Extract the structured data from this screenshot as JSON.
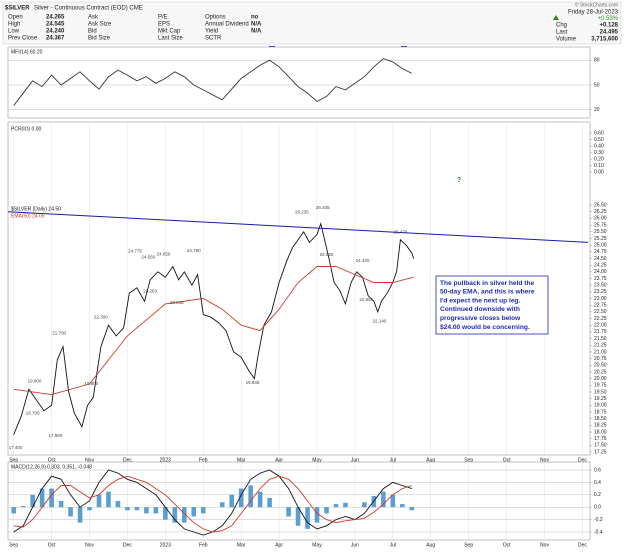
{
  "header": {
    "symbol": "$SILVER",
    "description": "Silver - Continuous Contract (EOD) CME",
    "source": "© StockCharts.com",
    "columns": [
      [
        [
          "Open",
          "24.265"
        ],
        [
          "High",
          "24.545"
        ],
        [
          "Low",
          "24.240"
        ],
        [
          "Prev Close",
          "24.367"
        ]
      ],
      [
        [
          "Ask"
        ],
        [
          "Ask Size"
        ],
        [
          "Bid"
        ],
        [
          "Bid Size"
        ]
      ],
      [
        [
          "P/E"
        ],
        [
          "EPS"
        ],
        [
          "Mkt Cap"
        ],
        [
          "Last Size"
        ]
      ],
      [
        [
          "Options",
          "no"
        ],
        [
          "Annual Dividend",
          "N/A"
        ],
        [
          "Yield",
          "N/A"
        ],
        [
          "SCTR"
        ]
      ]
    ],
    "date": "Friday 28-Jul-2023",
    "change_pct": "+0.53%",
    "stats": [
      [
        "Chg",
        "+0.128"
      ],
      [
        "Last",
        "24.495"
      ],
      [
        "Volume",
        "3,715,600"
      ]
    ]
  },
  "chart_data": [
    {
      "type": "line",
      "title": "MFI(14) 60.20",
      "xlim": [
        -0.15,
        15.2
      ],
      "ylim": [
        10,
        96
      ],
      "yticks": [
        80,
        50,
        20
      ],
      "grid": true,
      "series": [
        {
          "color": "#333333",
          "x": [
            0,
            0.25,
            0.5,
            0.75,
            1,
            1.25,
            1.5,
            1.75,
            2,
            2.25,
            2.5,
            2.75,
            3,
            3.25,
            3.5,
            3.75,
            4,
            4.25,
            4.5,
            4.75,
            5,
            5.25,
            5.5,
            5.75,
            6,
            6.25,
            6.5,
            6.75,
            7,
            7.25,
            7.5,
            7.75,
            8,
            8.25,
            8.5,
            8.75,
            9,
            9.25,
            9.5,
            9.75,
            10,
            10.25,
            10.5
          ],
          "values": [
            25,
            40,
            55,
            48,
            62,
            50,
            58,
            66,
            55,
            45,
            60,
            68,
            62,
            55,
            60,
            52,
            58,
            66,
            60,
            50,
            44,
            38,
            32,
            45,
            58,
            66,
            74,
            80,
            72,
            60,
            48,
            40,
            30,
            36,
            48,
            44,
            52,
            60,
            72,
            82,
            78,
            70,
            64
          ]
        }
      ]
    },
    {
      "type": "line",
      "xlim": [
        -0.15,
        15.2
      ],
      "ylim": [
        17.14,
        29.61
      ],
      "grid": false,
      "xgrid": true,
      "yticks": [
        {
          "value": 26.5,
          "label": "26.50"
        },
        26.25,
        {
          "value": 26,
          "label": "26.00"
        },
        25.75,
        {
          "value": 25.5,
          "label": "25.50"
        },
        25.25,
        {
          "value": 25,
          "label": "25.00"
        },
        24.75,
        {
          "value": 24.5,
          "label": "24.50"
        },
        24.25,
        {
          "value": 24,
          "label": "24.00"
        },
        23.75,
        {
          "value": 23.5,
          "label": "23.50"
        },
        23.25,
        {
          "value": 23,
          "label": "23.00"
        },
        22.75,
        {
          "value": 22.5,
          "label": "22.50"
        },
        22.25,
        {
          "value": 22,
          "label": "22.00"
        },
        21.75,
        {
          "value": 21.5,
          "label": "21.50"
        },
        21.25,
        {
          "value": 21,
          "label": "21.00"
        },
        20.75,
        {
          "value": 20.5,
          "label": "20.50"
        },
        20.25,
        {
          "value": 20,
          "label": "20.00"
        },
        19.75,
        {
          "value": 19.5,
          "label": "19.50"
        },
        19.25,
        {
          "value": 19,
          "label": "19.00"
        },
        18.75,
        {
          "value": 18.5,
          "label": "18.50"
        },
        18.25,
        {
          "value": 18,
          "label": "18.00"
        },
        17.75,
        {
          "value": 17.5,
          "label": "17.50"
        },
        17.25
      ],
      "y2_title": "PCR(IO) 0.00",
      "y2lim": [
        -4.35,
        0.77
      ],
      "y2ticks": [
        {
          "value": 0.6,
          "label": "0.60"
        },
        {
          "value": 0.5,
          "label": "0.50"
        },
        {
          "value": 0.4,
          "label": "0.40"
        },
        {
          "value": 0.3,
          "label": "0.30"
        },
        {
          "value": 0.2,
          "label": "0.20"
        },
        {
          "value": 0.1,
          "label": "0.10"
        },
        {
          "value": 0,
          "label": "0.00"
        }
      ],
      "xticks": [
        {
          "value": 0,
          "label": "Sep"
        },
        {
          "value": 1,
          "label": "Oct"
        },
        {
          "value": 2,
          "label": "Nov"
        },
        {
          "value": 3,
          "label": "Dec"
        },
        {
          "value": 4,
          "label": "2023"
        },
        {
          "value": 5,
          "label": "Feb"
        },
        {
          "value": 6,
          "label": "Mar"
        },
        {
          "value": 7,
          "label": "Apr"
        },
        {
          "value": 8,
          "label": "May"
        },
        {
          "value": 9,
          "label": "Jun"
        },
        {
          "value": 10,
          "label": "Jul"
        },
        {
          "value": 11,
          "label": "Aug"
        },
        {
          "value": 12,
          "label": "Sep"
        },
        {
          "value": 13,
          "label": "Oct"
        },
        {
          "value": 14,
          "label": "Nov"
        },
        {
          "value": 15,
          "label": "Dec"
        }
      ],
      "series": [
        {
          "name": "$SILVER (Daily) 24.50",
          "color": "#111111",
          "x": [
            0,
            0.2,
            0.4,
            0.6,
            0.8,
            1,
            1.15,
            1.3,
            1.45,
            1.6,
            1.8,
            1.95,
            2.1,
            2.3,
            2.5,
            2.7,
            2.9,
            3.05,
            3.25,
            3.45,
            3.6,
            3.8,
            4,
            4.2,
            4.35,
            4.5,
            4.7,
            4.85,
            5,
            5.2,
            5.4,
            5.6,
            5.8,
            6,
            6.2,
            6.35,
            6.45,
            6.6,
            6.8,
            7,
            7.2,
            7.35,
            7.5,
            7.65,
            7.8,
            8,
            8.1,
            8.2,
            8.3,
            8.45,
            8.6,
            8.75,
            8.9,
            9.05,
            9.2,
            9.35,
            9.5,
            9.6,
            9.7,
            9.85,
            10,
            10.1,
            10.2,
            10.35,
            10.5,
            10.55
          ],
          "values": [
            17.9,
            18.6,
            19.6,
            19.2,
            18.8,
            19,
            20.7,
            21.2,
            19.5,
            18.7,
            18.2,
            19,
            19.3,
            21.2,
            22,
            21.6,
            21.9,
            23.2,
            23.4,
            22.9,
            23.7,
            24,
            23.8,
            24.2,
            23.7,
            24,
            23.5,
            23.9,
            22.4,
            22.3,
            22.1,
            21.8,
            21,
            20.8,
            20.3,
            20,
            20.9,
            22,
            22.5,
            23.6,
            24.4,
            24.9,
            25.2,
            25.5,
            25.1,
            25.4,
            25.8,
            25.2,
            24.6,
            23.6,
            23.3,
            22.8,
            23.6,
            24,
            23.8,
            23.1,
            22.9,
            22.5,
            22.9,
            23.2,
            23.6,
            24,
            25.2,
            25,
            24.7,
            24.5
          ]
        },
        {
          "name": "EMA(50) 24.05",
          "color": "#d03a2a",
          "x": [
            0,
            1,
            2,
            3,
            4,
            5,
            5.5,
            6,
            6.5,
            7,
            7.5,
            8,
            8.5,
            9,
            9.5,
            10,
            10.55
          ],
          "values": [
            19.6,
            19.4,
            19.8,
            21.6,
            22.8,
            23,
            22.6,
            22,
            21.8,
            22.6,
            23.6,
            24.2,
            24.2,
            23.9,
            23.6,
            23.6,
            23.8
          ]
        },
        {
          "color": "#1a1aa8",
          "x": [
            -0.15,
            15.15
          ],
          "values": [
            26.25,
            25.1
          ]
        }
      ],
      "annotations": [
        {
          "x": 0.05,
          "value": 17.4,
          "label": "17.400"
        },
        {
          "x": 0.5,
          "value": 18.7,
          "label": "18.700"
        },
        {
          "x": 0.55,
          "value": 19.9,
          "label": "19.900"
        },
        {
          "x": 1.2,
          "value": 21.7,
          "label": "21.700"
        },
        {
          "x": 1.1,
          "value": 17.86,
          "label": "17.860"
        },
        {
          "x": 2.05,
          "value": 19.8,
          "label": "19.800"
        },
        {
          "x": 2.3,
          "value": 22.3,
          "label": "22.300"
        },
        {
          "x": 3.2,
          "value": 24.775,
          "label": "24.775"
        },
        {
          "x": 3.55,
          "value": 24.55,
          "label": "24.550"
        },
        {
          "x": 3.95,
          "value": 24.65,
          "label": "24.650"
        },
        {
          "x": 4.75,
          "value": 24.78,
          "label": "24.780"
        },
        {
          "x": 3.6,
          "value": 23.263,
          "label": "23.263"
        },
        {
          "x": 4.3,
          "value": 22.848,
          "label": "22.848"
        },
        {
          "x": 6.3,
          "value": 19.845,
          "label": "19.845"
        },
        {
          "x": 7.6,
          "value": 26.235,
          "label": "26.235"
        },
        {
          "x": 8.15,
          "value": 26.405,
          "label": "26.405"
        },
        {
          "x": 8.25,
          "value": 24.63,
          "label": "24.630"
        },
        {
          "x": 9.2,
          "value": 24.42,
          "label": "24.420"
        },
        {
          "x": 9.3,
          "value": 22.955,
          "label": "22.955"
        },
        {
          "x": 9.65,
          "value": 22.14,
          "label": "22.140"
        },
        {
          "x": 10.2,
          "value": 25.47,
          "label": "25.470"
        }
      ],
      "callout": [
        "The pullback in silver held the",
        "50-day EMA, and this is where",
        "I'd expect the next up leg.",
        "Continued downside with",
        "progressive closes below",
        "$24.00 would be concerning."
      ],
      "projection_label": "?"
    },
    {
      "type": "line",
      "title": "MACD(12,26,9) 0.303, 0.351, -0.048",
      "xlim": [
        -0.15,
        15.2
      ],
      "ylim": [
        -0.53,
        0.73
      ],
      "grid": true,
      "xgrid": true,
      "yticks": [
        0.6,
        0.4,
        0.2,
        {
          "value": 0,
          "label": "0.0"
        },
        -0.2,
        -0.4
      ],
      "xticks": [
        {
          "value": 0,
          "label": "Sep"
        },
        {
          "value": 1,
          "label": "Oct"
        },
        {
          "value": 2,
          "label": "Nov"
        },
        {
          "value": 3,
          "label": "Dec"
        },
        {
          "value": 4,
          "label": "2023"
        },
        {
          "value": 5,
          "label": "Feb"
        },
        {
          "value": 6,
          "label": "Mar"
        },
        {
          "value": 7,
          "label": "Apr"
        },
        {
          "value": 8,
          "label": "May"
        },
        {
          "value": 9,
          "label": "Jun"
        },
        {
          "value": 10,
          "label": "Jul"
        },
        {
          "value": 11,
          "label": "Aug"
        },
        {
          "value": 12,
          "label": "Sep"
        },
        {
          "value": 13,
          "label": "Oct"
        },
        {
          "value": 14,
          "label": "Nov"
        },
        {
          "value": 15,
          "label": "Dec"
        }
      ],
      "series": [
        {
          "kind": "bar",
          "color": "#5b9fd0",
          "x": [
            0,
            0.25,
            0.5,
            0.75,
            1,
            1.25,
            1.5,
            1.75,
            2,
            2.25,
            2.5,
            2.75,
            3,
            3.25,
            3.5,
            3.75,
            4,
            4.25,
            4.5,
            4.75,
            5,
            5.25,
            5.5,
            5.75,
            6,
            6.25,
            6.5,
            6.75,
            7,
            7.25,
            7.5,
            7.75,
            8,
            8.25,
            8.5,
            8.75,
            9,
            9.25,
            9.5,
            9.75,
            10,
            10.25,
            10.5
          ],
          "values": [
            -0.1,
            0.02,
            0.2,
            0.3,
            0.3,
            0.1,
            -0.15,
            -0.25,
            -0.05,
            0.2,
            0.25,
            0.1,
            -0.05,
            -0.05,
            -0.1,
            -0.1,
            -0.2,
            -0.25,
            -0.25,
            -0.15,
            -0.1,
            0,
            0.08,
            0.2,
            0.3,
            0.35,
            0.25,
            0.15,
            0,
            -0.15,
            -0.3,
            -0.35,
            -0.25,
            -0.1,
            0.05,
            0.07,
            0,
            0.08,
            0.18,
            0.25,
            0.2,
            0.05,
            -0.05
          ]
        },
        {
          "color": "#111111",
          "x": [
            0,
            0.25,
            0.5,
            0.75,
            1,
            1.25,
            1.5,
            1.75,
            2,
            2.25,
            2.5,
            2.75,
            3,
            3.25,
            3.5,
            3.75,
            4,
            4.25,
            4.5,
            4.75,
            5,
            5.25,
            5.5,
            5.75,
            6,
            6.25,
            6.5,
            6.75,
            7,
            7.25,
            7.5,
            7.75,
            8,
            8.25,
            8.5,
            8.75,
            9,
            9.25,
            9.5,
            9.75,
            10,
            10.25,
            10.5
          ],
          "values": [
            -0.4,
            -0.3,
            0,
            0.3,
            0.5,
            0.45,
            0.2,
            0,
            0.1,
            0.4,
            0.6,
            0.55,
            0.45,
            0.4,
            0.3,
            0.2,
            0,
            -0.2,
            -0.35,
            -0.4,
            -0.45,
            -0.4,
            -0.3,
            -0.1,
            0.2,
            0.45,
            0.55,
            0.6,
            0.5,
            0.3,
            0,
            -0.25,
            -0.35,
            -0.3,
            -0.2,
            -0.15,
            -0.2,
            -0.1,
            0.1,
            0.3,
            0.4,
            0.35,
            0.3
          ]
        },
        {
          "color": "#d03a2a",
          "x": [
            0,
            0.25,
            0.5,
            0.75,
            1,
            1.25,
            1.5,
            1.75,
            2,
            2.25,
            2.5,
            2.75,
            3,
            3.25,
            3.5,
            3.75,
            4,
            4.25,
            4.5,
            4.75,
            5,
            5.25,
            5.5,
            5.75,
            6,
            6.25,
            6.5,
            6.75,
            7,
            7.25,
            7.5,
            7.75,
            8,
            8.25,
            8.5,
            8.75,
            9,
            9.25,
            9.5,
            9.75,
            10,
            10.25,
            10.5
          ],
          "values": [
            -0.3,
            -0.32,
            -0.2,
            0,
            0.2,
            0.35,
            0.35,
            0.25,
            0.15,
            0.2,
            0.35,
            0.45,
            0.5,
            0.45,
            0.4,
            0.3,
            0.2,
            0.05,
            -0.1,
            -0.25,
            -0.35,
            -0.4,
            -0.38,
            -0.3,
            -0.1,
            0.1,
            0.3,
            0.45,
            0.5,
            0.45,
            0.3,
            0.1,
            -0.1,
            -0.2,
            -0.25,
            -0.22,
            -0.2,
            -0.18,
            -0.08,
            0.05,
            0.2,
            0.3,
            0.35
          ]
        }
      ]
    }
  ]
}
